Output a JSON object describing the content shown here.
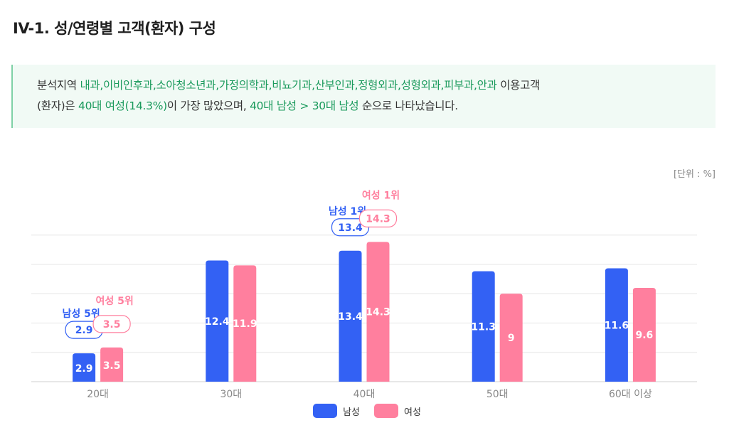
{
  "page": {
    "title": "IV-1. 성/연령별 고객(환자) 구성"
  },
  "summary": {
    "t1": "분석지역 ",
    "regions": "내과,이비인후과,소아청소년과,가정의학과,비뇨기과,산부인과,정형외과,성형외과,피부과,안과",
    "t2": " 이용고객",
    "t3": "(환자)은 ",
    "top": "40대 여성(14.3%)",
    "t4": "이 가장 많았으며, ",
    "order": "40대 남성 > 30대 남성",
    "t5": " 순으로 나타났습니다."
  },
  "unit_label": "[단위 : %]",
  "colors": {
    "male": "#3361f4",
    "female": "#ff7f9e",
    "grid": "#e6e6e6",
    "axis_text": "#888888"
  },
  "chart_data": {
    "type": "bar",
    "categories": [
      "20대",
      "30대",
      "40대",
      "50대",
      "60대 이상"
    ],
    "series": [
      {
        "name": "남성",
        "values": [
          2.9,
          12.4,
          13.4,
          11.3,
          11.6
        ]
      },
      {
        "name": "여성",
        "values": [
          3.5,
          11.9,
          14.3,
          9,
          9.6
        ]
      }
    ],
    "ylim": [
      0,
      16
    ],
    "grid": true,
    "legend": "bottom-center",
    "annotations": [
      {
        "series": "남성",
        "category": "20대",
        "rank_label": "남성 5위",
        "value_label": "2.9"
      },
      {
        "series": "여성",
        "category": "20대",
        "rank_label": "여성 5위",
        "value_label": "3.5"
      },
      {
        "series": "남성",
        "category": "40대",
        "rank_label": "남성 1위",
        "value_label": "13.4"
      },
      {
        "series": "여성",
        "category": "40대",
        "rank_label": "여성 1위",
        "value_label": "14.3"
      }
    ]
  }
}
